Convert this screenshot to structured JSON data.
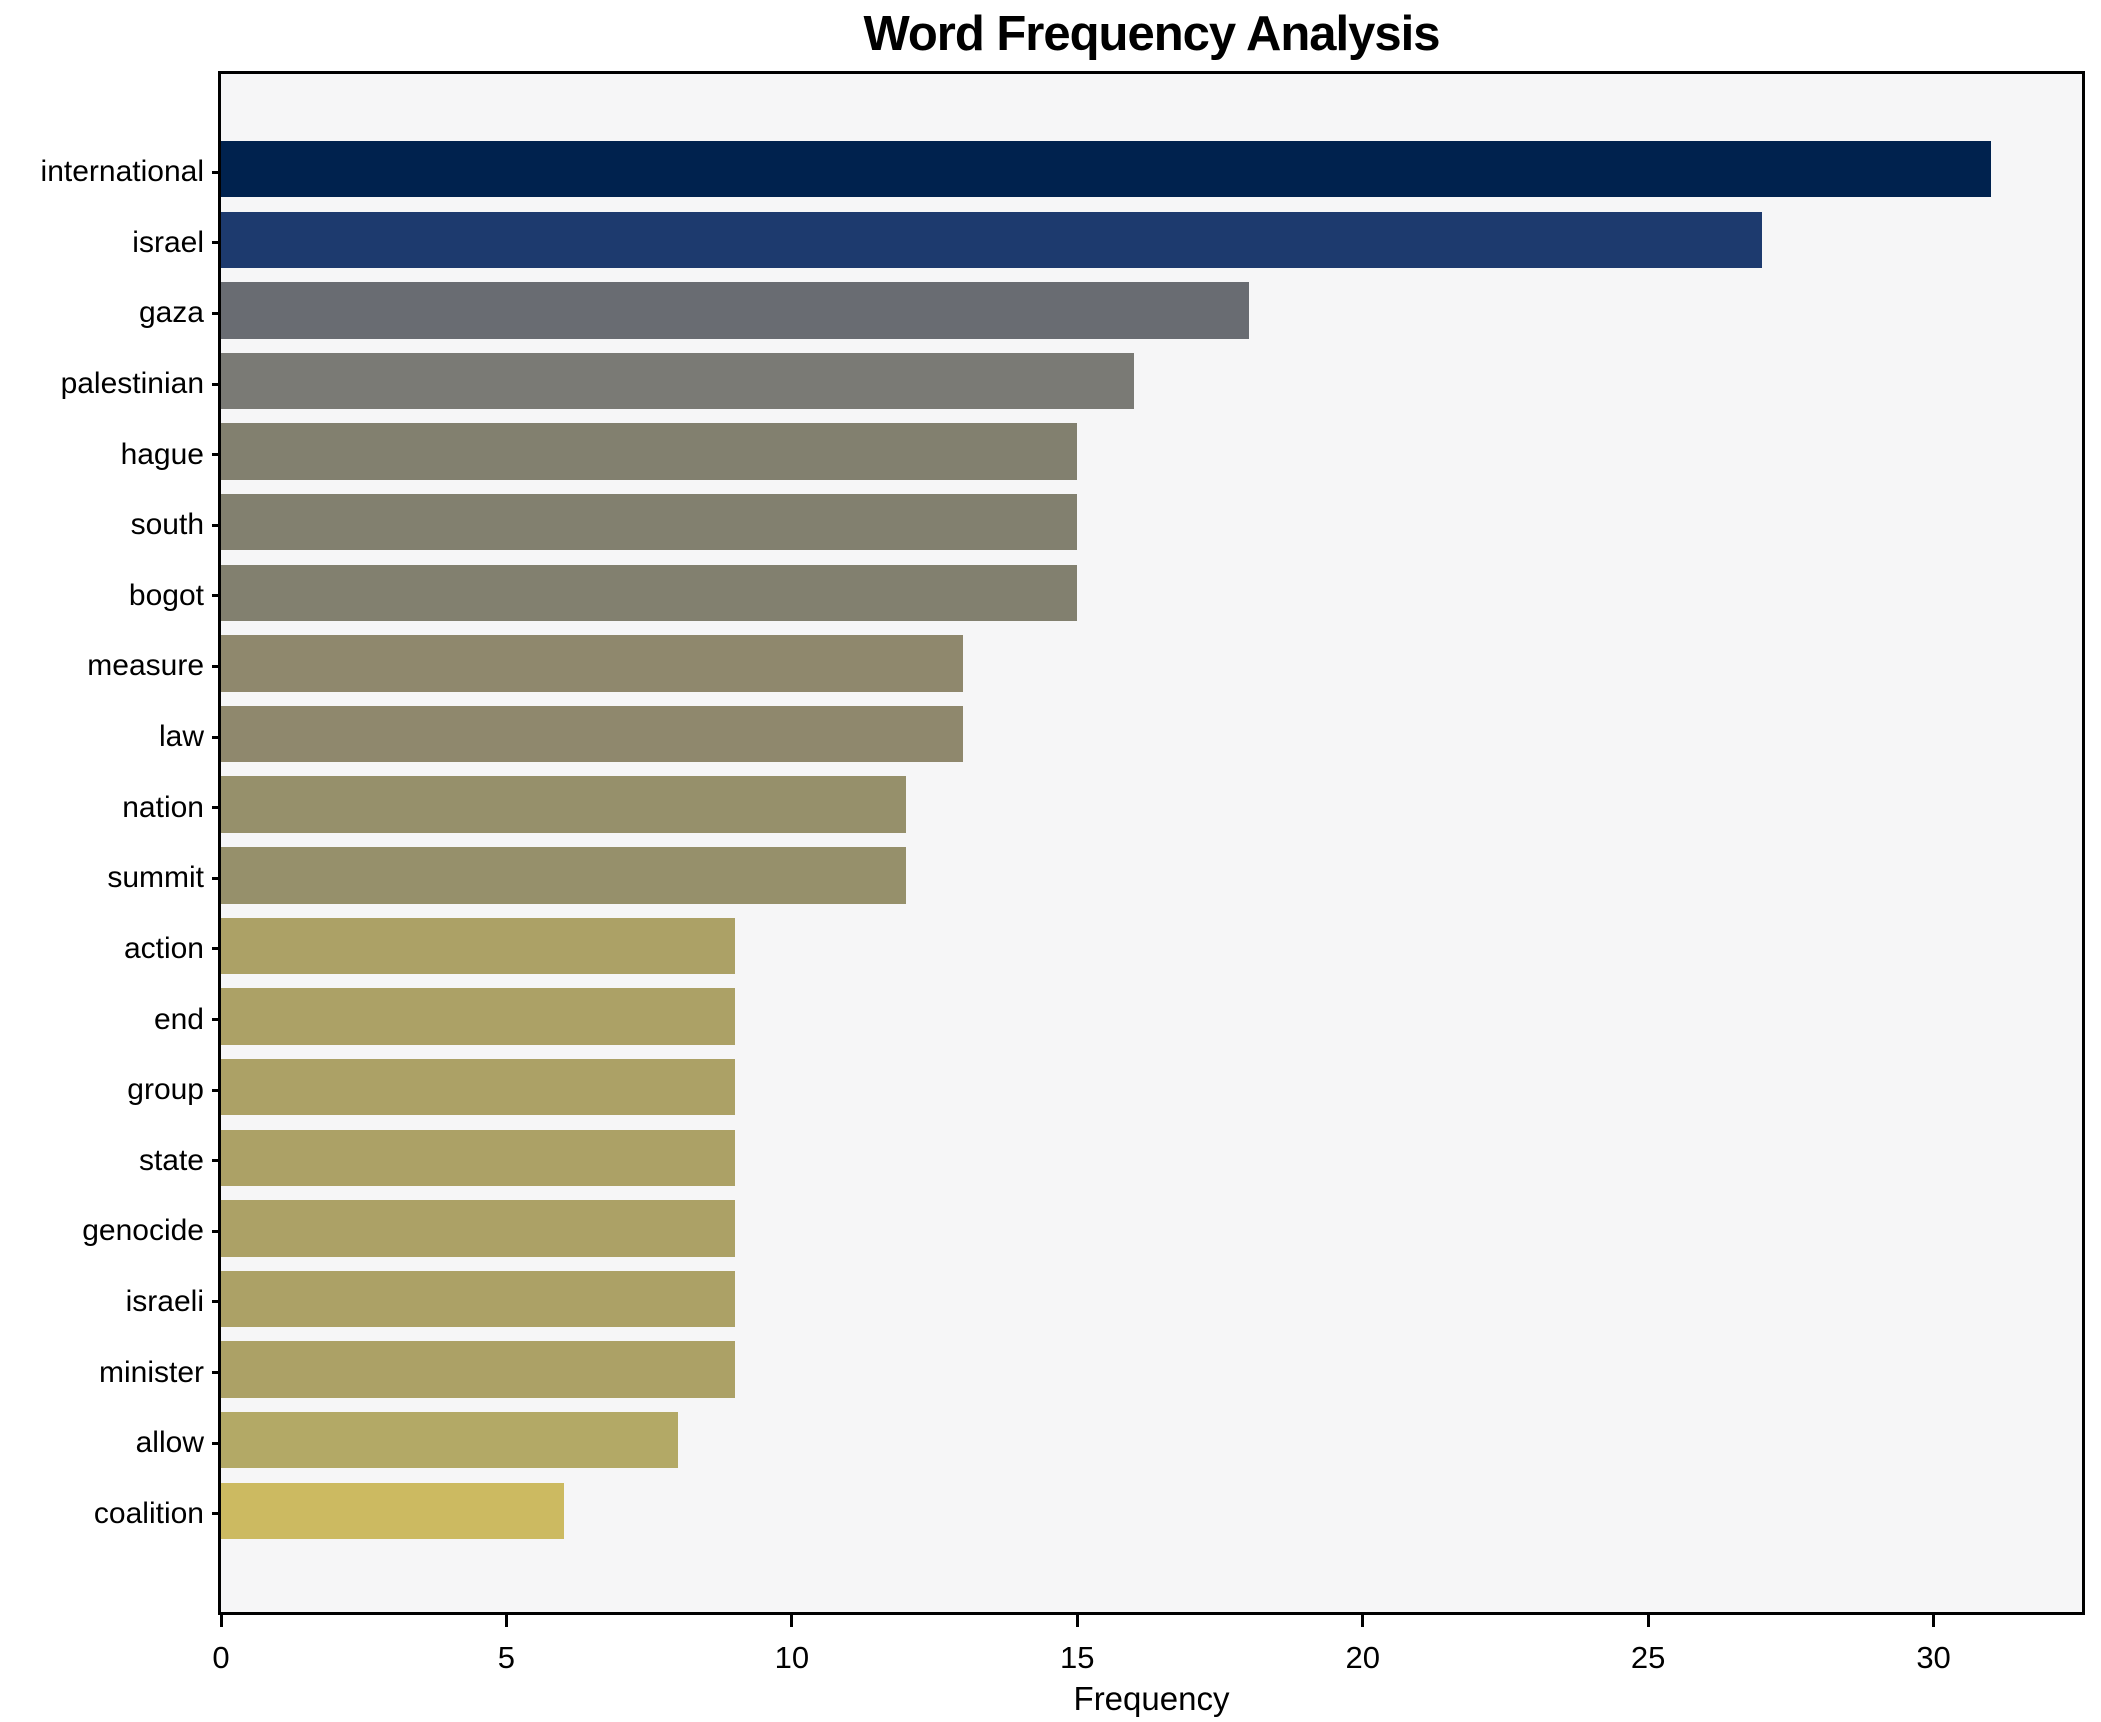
{
  "title": "Word Frequency Analysis",
  "xlabel": "Frequency",
  "colors": {
    "figure_background": "#ffffff",
    "plot_background": "#f6f6f7",
    "spine": "#000000",
    "text": "#000000"
  },
  "chart_data": {
    "type": "bar",
    "orientation": "horizontal",
    "title": "Word Frequency Analysis",
    "xlabel": "Frequency",
    "ylabel": "",
    "grid": false,
    "legend": false,
    "xlim": [
      0,
      32.6
    ],
    "x_ticks": [
      0,
      5,
      10,
      15,
      20,
      25,
      30
    ],
    "categories": [
      "international",
      "israel",
      "gaza",
      "palestinian",
      "hague",
      "south",
      "bogot",
      "measure",
      "law",
      "nation",
      "summit",
      "action",
      "end",
      "group",
      "state",
      "genocide",
      "israeli",
      "minister",
      "allow",
      "coalition"
    ],
    "values": [
      31,
      27,
      18,
      16,
      15,
      15,
      15,
      13,
      13,
      12,
      12,
      9,
      9,
      9,
      9,
      9,
      9,
      9,
      8,
      6
    ],
    "bar_colors": [
      "#00224e",
      "#1d3a6e",
      "#696c72",
      "#7a7a75",
      "#82806f",
      "#82806f",
      "#82806f",
      "#8f886d",
      "#8f886d",
      "#96906b",
      "#96906b",
      "#aca166",
      "#aca166",
      "#aca166",
      "#aca166",
      "#aca166",
      "#aca166",
      "#aca166",
      "#b3a966",
      "#ccba61"
    ],
    "colormap_note": "cividis gradient, darkest navy = highest frequency"
  }
}
